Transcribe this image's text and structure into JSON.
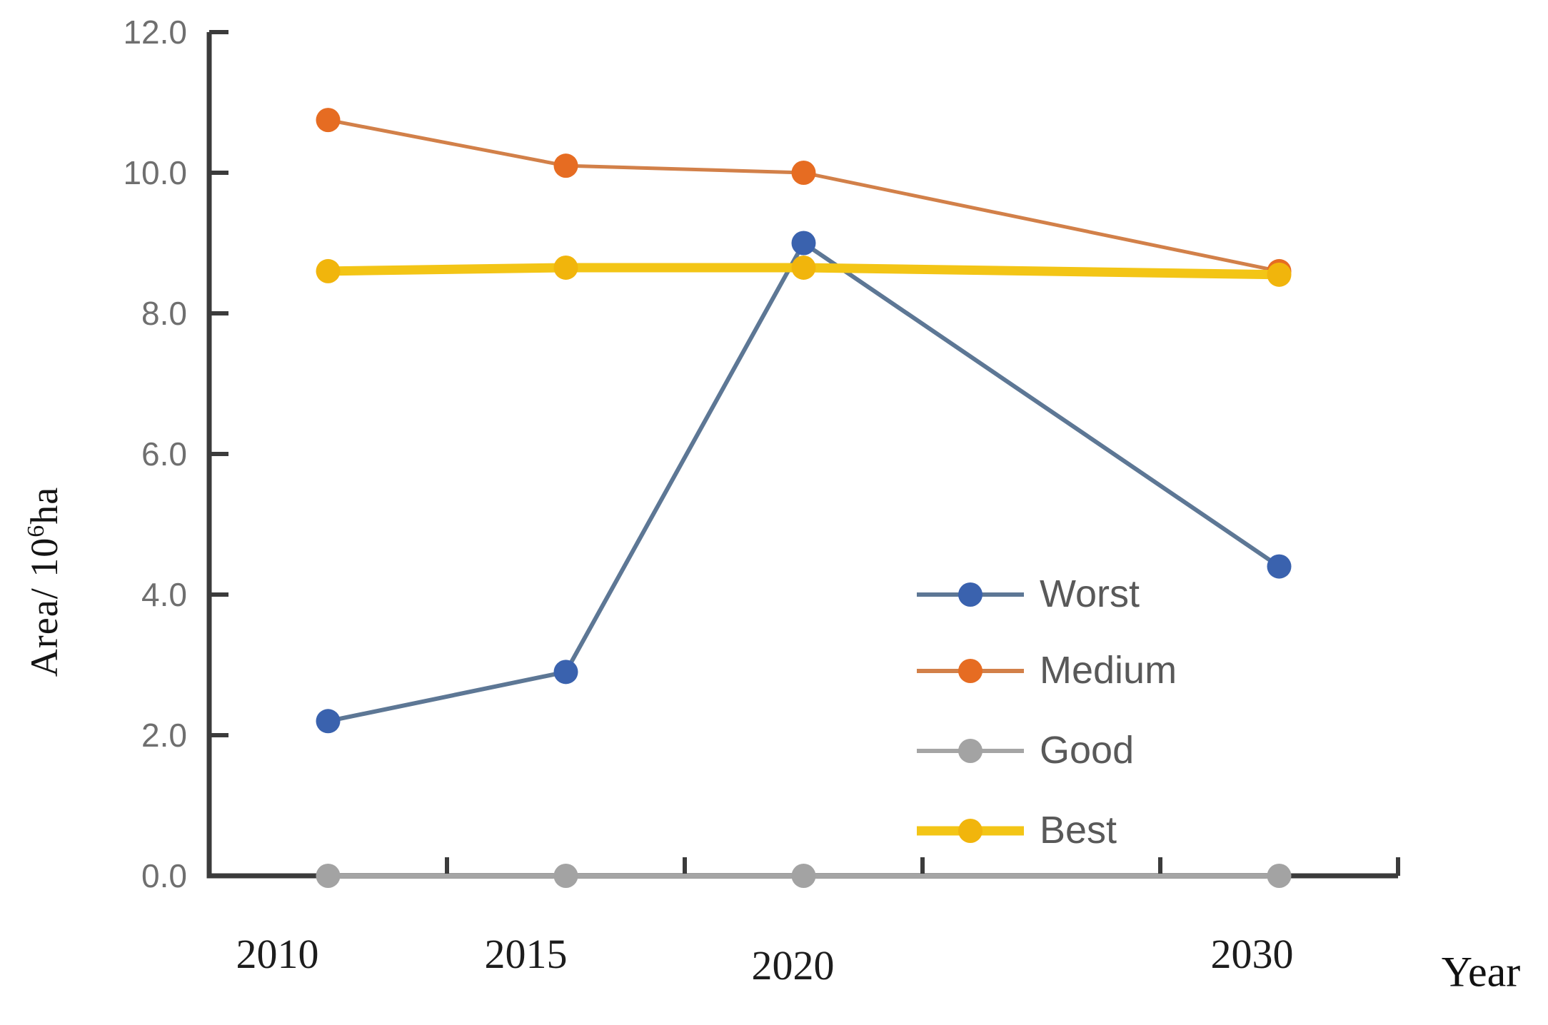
{
  "chart_data": {
    "type": "line",
    "title": "",
    "xlabel": "Year",
    "ylabel": "Area/ 10⁶ha",
    "ylabel_prefix": "Area/ 10",
    "ylabel_superscript": "6",
    "ylabel_suffix": "ha",
    "x_categories": [
      "2010",
      "2015",
      "2020",
      "2030"
    ],
    "x_slots": [
      0,
      1,
      2,
      4
    ],
    "n_slots": 5,
    "ylim": [
      0,
      12
    ],
    "ytick_step": 2,
    "ytick_labels": [
      "0.0",
      "2.0",
      "4.0",
      "6.0",
      "8.0",
      "10.0",
      "12.0"
    ],
    "grid": false,
    "legend_position": "inside-right",
    "legend_order": [
      "Worst",
      "Medium",
      "Good",
      "Best"
    ],
    "series": [
      {
        "name": "Worst",
        "values": [
          2.2,
          2.9,
          9.0,
          4.4
        ],
        "marker_color": "#3a62ae",
        "line_color": "#5d7795",
        "line_width": 6
      },
      {
        "name": "Medium",
        "values": [
          10.75,
          10.1,
          10.0,
          8.6
        ],
        "marker_color": "#e66c22",
        "line_color": "#d28049",
        "line_width": 5
      },
      {
        "name": "Good",
        "values": [
          0.0,
          0.0,
          0.0,
          0.0
        ],
        "marker_color": "#a3a3a3",
        "line_color": "#a5a5a5",
        "line_width": 6
      },
      {
        "name": "Best",
        "values": [
          8.6,
          8.65,
          8.65,
          8.55
        ],
        "marker_color": "#f1b50c",
        "line_color": "#f3c516",
        "line_width": 13
      }
    ],
    "colors": {
      "axis": "#3b3b3b",
      "ytick_label": "#6f6f6f",
      "xtick_label": "#1d1d1d",
      "legend_text": "#595959",
      "background": "#ffffff"
    }
  }
}
